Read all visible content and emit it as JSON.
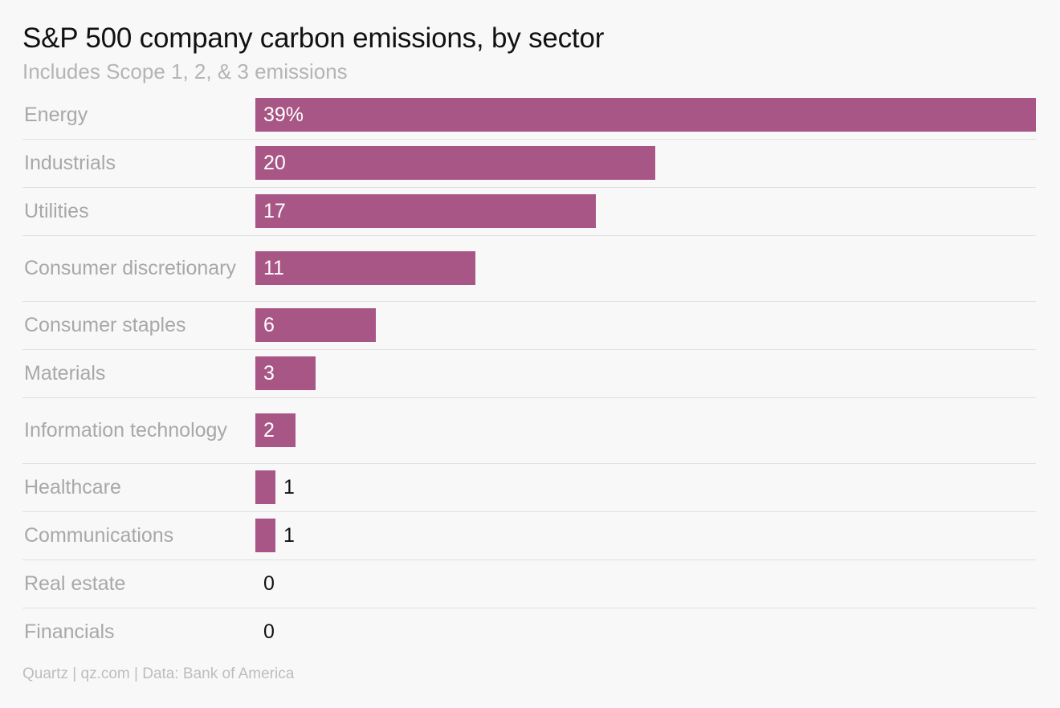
{
  "title": "S&P 500 company carbon emissions, by sector",
  "subtitle": "Includes Scope 1, 2, & 3 emissions",
  "footer": "Quartz | qz.com | Data: Bank of America",
  "colors": {
    "bar": "#a85686",
    "label_inside": "#ffffff",
    "label_outside": "#111111",
    "category": "#a8a8a8"
  },
  "chart_data": {
    "type": "bar",
    "orientation": "horizontal",
    "title": "S&P 500 company carbon emissions, by sector",
    "subtitle": "Includes Scope 1, 2, & 3 emissions",
    "categories": [
      "Energy",
      "Industrials",
      "Utilities",
      "Consumer discretionary",
      "Consumer staples",
      "Materials",
      "Information technology",
      "Healthcare",
      "Communications",
      "Real estate",
      "Financials"
    ],
    "values": [
      39,
      20,
      17,
      11,
      6,
      3,
      2,
      1,
      1,
      0,
      0
    ],
    "value_labels": [
      "39%",
      "20",
      "17",
      "11",
      "6",
      "3",
      "2",
      "1",
      "1",
      "0",
      "0"
    ],
    "unit": "%",
    "xlim": [
      0,
      39
    ],
    "grid": false,
    "source": "Quartz | qz.com | Data: Bank of America"
  }
}
